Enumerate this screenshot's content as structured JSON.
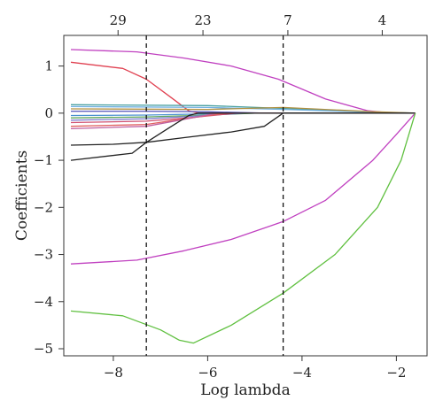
{
  "chart_data": {
    "type": "line",
    "title": "",
    "xlabel": "Log lambda",
    "ylabel": "Coefficients",
    "xlim": [
      -9.05,
      -1.35
    ],
    "ylim": [
      -5.15,
      1.65
    ],
    "x_ticks": [
      -8,
      -6,
      -4,
      -2
    ],
    "x_tick_labels": [
      "−8",
      "−6",
      "−4",
      "−2"
    ],
    "y_ticks": [
      1,
      0,
      -1,
      -2,
      -3,
      -4,
      -5
    ],
    "y_tick_labels": [
      "1",
      "0",
      "−1",
      "−2",
      "−3",
      "−4",
      "−5"
    ],
    "top_axis": {
      "ticks": [
        -7.9,
        -6.1,
        -4.3,
        -2.3
      ],
      "labels": [
        "29",
        "23",
        "7",
        "4"
      ]
    },
    "vlines": [
      -7.3,
      -4.4
    ],
    "grid": false,
    "legend": "none",
    "series": [
      {
        "color": "#c040c0",
        "x": [
          -8.9,
          -7.5,
          -6.5,
          -5.5,
          -4.5,
          -3.5,
          -2.6,
          -2.1,
          -1.6
        ],
        "y": [
          1.35,
          1.3,
          1.17,
          1.0,
          0.72,
          0.3,
          0.05,
          0.0,
          0.0
        ]
      },
      {
        "color": "#e04050",
        "x": [
          -8.9,
          -7.8,
          -7.3,
          -6.8,
          -6.4,
          -6.2,
          -1.6
        ],
        "y": [
          1.08,
          0.95,
          0.72,
          0.35,
          0.05,
          0.0,
          0.0
        ]
      },
      {
        "color": "#4aa0a0",
        "x": [
          -8.9,
          -6.0,
          -4.4,
          -2.5,
          -1.6
        ],
        "y": [
          0.18,
          0.16,
          0.1,
          0.02,
          0.0
        ]
      },
      {
        "color": "#70b0e0",
        "x": [
          -8.9,
          -6.0,
          -4.4,
          -2.5,
          -1.6
        ],
        "y": [
          0.14,
          0.12,
          0.08,
          0.02,
          0.0
        ]
      },
      {
        "color": "#b09040",
        "x": [
          -8.9,
          -6.0,
          -4.4,
          -2.5,
          -1.6
        ],
        "y": [
          0.09,
          0.08,
          0.12,
          0.03,
          0.0
        ]
      },
      {
        "color": "#6060c0",
        "x": [
          -8.9,
          -7.3,
          -6.0,
          -4.8,
          -1.6
        ],
        "y": [
          0.04,
          0.04,
          0.03,
          0.0,
          0.0
        ]
      },
      {
        "color": "#4a90d0",
        "x": [
          -8.9,
          -7.3,
          -6.2,
          -5.0,
          -1.6
        ],
        "y": [
          -0.05,
          -0.04,
          -0.02,
          0.0,
          0.0
        ]
      },
      {
        "color": "#60a860",
        "x": [
          -8.9,
          -7.3,
          -6.0,
          -5.0,
          -1.6
        ],
        "y": [
          -0.1,
          -0.08,
          -0.04,
          0.0,
          0.0
        ]
      },
      {
        "color": "#8080d0",
        "x": [
          -8.9,
          -7.3,
          -6.2,
          -5.2,
          -1.6
        ],
        "y": [
          -0.15,
          -0.12,
          -0.06,
          0.0,
          0.0
        ]
      },
      {
        "color": "#d05070",
        "x": [
          -8.9,
          -7.3,
          -6.3,
          -5.4,
          -1.6
        ],
        "y": [
          -0.2,
          -0.17,
          -0.09,
          0.0,
          0.0
        ]
      },
      {
        "color": "#e06060",
        "x": [
          -8.9,
          -7.3,
          -6.5,
          -5.6,
          -1.6
        ],
        "y": [
          -0.28,
          -0.24,
          -0.12,
          0.0,
          0.0
        ]
      },
      {
        "color": "#c060a0",
        "x": [
          -8.9,
          -7.3,
          -6.6,
          -5.8,
          -1.6
        ],
        "y": [
          -0.33,
          -0.28,
          -0.15,
          0.0,
          0.0
        ]
      },
      {
        "color": "#222222",
        "x": [
          -8.9,
          -7.6,
          -7.3,
          -6.8,
          -6.4,
          -6.2,
          -1.6
        ],
        "y": [
          -1.0,
          -0.85,
          -0.62,
          -0.3,
          -0.05,
          0.0,
          0.0
        ]
      },
      {
        "color": "#222222",
        "x": [
          -8.9,
          -8.0,
          -7.3,
          -6.5,
          -5.5,
          -4.8,
          -4.4,
          -3.5,
          -1.6
        ],
        "y": [
          -0.68,
          -0.66,
          -0.62,
          -0.52,
          -0.4,
          -0.28,
          0.0,
          0.0,
          0.0
        ]
      },
      {
        "color": "#c040c0",
        "x": [
          -8.9,
          -7.5,
          -6.5,
          -5.5,
          -4.4,
          -3.5,
          -2.5,
          -2.0,
          -1.6
        ],
        "y": [
          -3.2,
          -3.12,
          -2.92,
          -2.68,
          -2.3,
          -1.85,
          -1.0,
          -0.45,
          0.0
        ]
      },
      {
        "color": "#60c040",
        "x": [
          -8.9,
          -7.8,
          -7.0,
          -6.6,
          -6.3,
          -5.5,
          -4.4,
          -3.3,
          -2.4,
          -1.9,
          -1.6
        ],
        "y": [
          -4.2,
          -4.3,
          -4.6,
          -4.82,
          -4.88,
          -4.5,
          -3.82,
          -3.0,
          -2.0,
          -1.0,
          0.0
        ]
      }
    ]
  }
}
